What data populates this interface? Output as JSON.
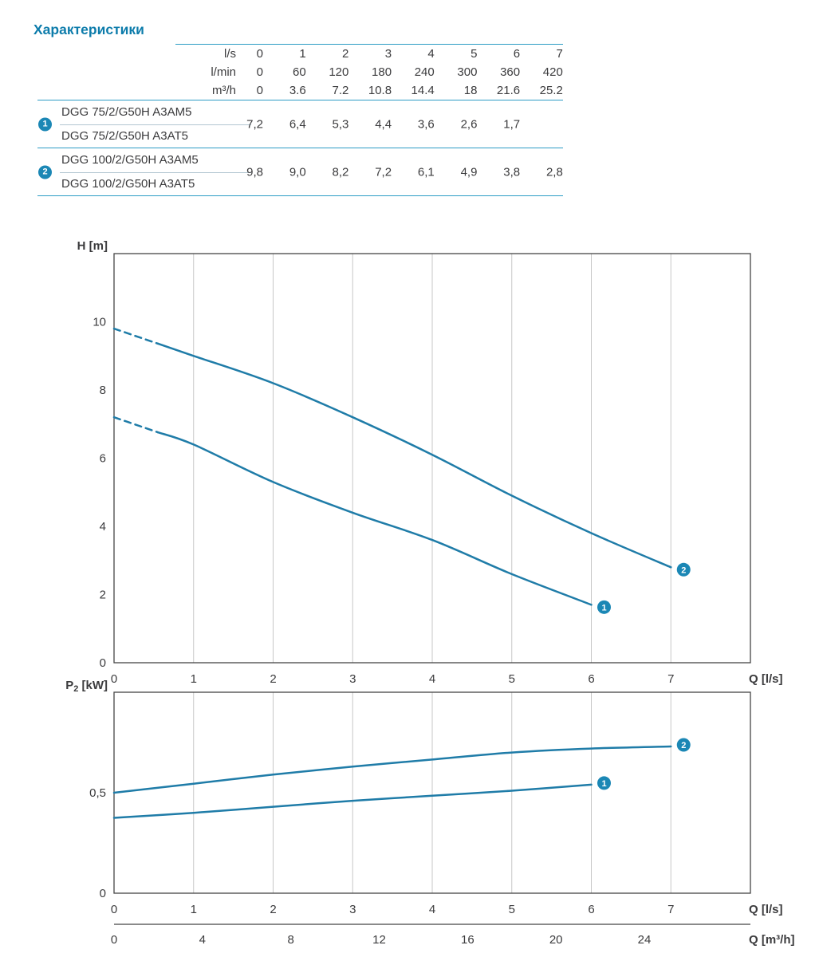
{
  "title": "Характеристики",
  "colors": {
    "accent": "#1b87b5",
    "curve": "#1f7ca8",
    "title": "#0d7cab",
    "table_line": "#2d9cc5",
    "grid": "#c7c7c7",
    "frame": "#454545",
    "text": "#3b3b3d"
  },
  "table": {
    "unit_rows": [
      {
        "label": "l/s",
        "values": [
          "0",
          "1",
          "2",
          "3",
          "4",
          "5",
          "6",
          "7"
        ]
      },
      {
        "label": "l/min",
        "values": [
          "0",
          "60",
          "120",
          "180",
          "240",
          "300",
          "360",
          "420"
        ]
      },
      {
        "label": "m³/h",
        "values": [
          "0",
          "3.6",
          "7.2",
          "10.8",
          "14.4",
          "18",
          "21.6",
          "25.2"
        ]
      }
    ],
    "models": [
      {
        "badge": "1",
        "names": [
          "DGG 75/2/G50H A3AM5",
          "DGG 75/2/G50H A3AT5"
        ],
        "values": [
          "7,2",
          "6,4",
          "5,3",
          "4,4",
          "3,6",
          "2,6",
          "1,7"
        ]
      },
      {
        "badge": "2",
        "names": [
          "DGG 100/2/G50H A3AM5",
          "DGG 100/2/G50H A3AT5"
        ],
        "values": [
          "9,8",
          "9,0",
          "8,2",
          "7,2",
          "6,1",
          "4,9",
          "3,8",
          "2,8"
        ]
      }
    ]
  },
  "chart_data": [
    {
      "type": "line",
      "title": "Head vs flow",
      "xlabel": "Q [l/s]",
      "ylabel": "H [m]",
      "xlim": [
        0,
        8
      ],
      "ylim": [
        0,
        12
      ],
      "xticks": [
        0,
        1,
        2,
        3,
        4,
        5,
        6,
        7
      ],
      "yticks": [
        0,
        2,
        4,
        6,
        8,
        10
      ],
      "ytick_labels": [
        "0",
        "2",
        "4",
        "6",
        "8",
        "10"
      ],
      "grid": "vertical",
      "legend": "curve-end markers",
      "series": [
        {
          "name": "1",
          "x": [
            0,
            1,
            2,
            3,
            4,
            5,
            6
          ],
          "y": [
            7.2,
            6.4,
            5.3,
            4.4,
            3.6,
            2.6,
            1.7
          ],
          "dash_until_x": 0.55
        },
        {
          "name": "2",
          "x": [
            0,
            1,
            2,
            3,
            4,
            5,
            6,
            7
          ],
          "y": [
            9.8,
            9.0,
            8.2,
            7.2,
            6.1,
            4.9,
            3.8,
            2.8
          ],
          "dash_until_x": 0.55
        }
      ]
    },
    {
      "type": "line",
      "title": "Power vs flow",
      "xlabel": "Q [l/s]",
      "xlabel2": "Q [m³/h]",
      "ylabel": "P2 [kW]",
      "ylabel_parts": {
        "pre": "P",
        "sub": "2",
        "post": " [kW]"
      },
      "xlim": [
        0,
        8
      ],
      "ylim": [
        0,
        1
      ],
      "xticks": [
        0,
        1,
        2,
        3,
        4,
        5,
        6,
        7
      ],
      "x2ticks": [
        0,
        4,
        8,
        12,
        16,
        20,
        24
      ],
      "x2_per_x": 3.6,
      "yticks": [
        0,
        0.5
      ],
      "ytick_labels": [
        "0",
        "0,5"
      ],
      "grid": "vertical",
      "legend": "curve-end markers",
      "series": [
        {
          "name": "1",
          "x": [
            0,
            1,
            2,
            3,
            4,
            5,
            6
          ],
          "y": [
            0.375,
            0.4,
            0.43,
            0.46,
            0.485,
            0.51,
            0.54
          ]
        },
        {
          "name": "2",
          "x": [
            0,
            1,
            2,
            3,
            4,
            5,
            6,
            7
          ],
          "y": [
            0.5,
            0.545,
            0.59,
            0.63,
            0.665,
            0.7,
            0.72,
            0.73
          ]
        }
      ]
    }
  ]
}
